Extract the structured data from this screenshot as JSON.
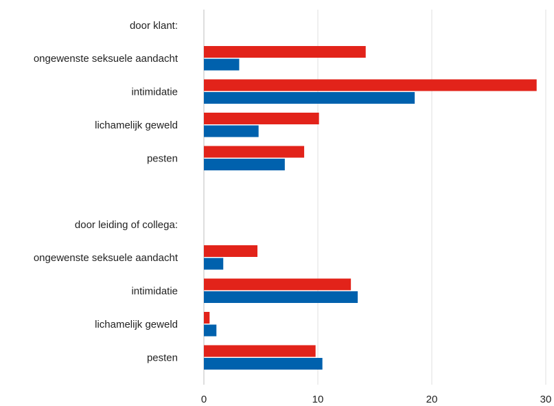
{
  "chart_data": {
    "type": "bar",
    "orientation": "horizontal",
    "xlim": [
      0,
      30
    ],
    "x_ticks": [
      0,
      10,
      20,
      30
    ],
    "grid": "vertical",
    "groups": [
      {
        "label": "door klant:",
        "categories": [
          "ongewenste seksuele aandacht",
          "intimidatie",
          "lichamelijk geweld",
          "pesten"
        ],
        "series": [
          {
            "color": "#e2231a",
            "values": [
              14.2,
              29.2,
              10.1,
              8.8
            ]
          },
          {
            "color": "#0061ad",
            "values": [
              3.1,
              18.5,
              4.8,
              7.1
            ]
          }
        ]
      },
      {
        "label": "door leiding of collega:",
        "categories": [
          "ongewenste seksuele aandacht",
          "intimidatie",
          "lichamelijk geweld",
          "pesten"
        ],
        "series": [
          {
            "color": "#e2231a",
            "values": [
              4.7,
              12.9,
              0.5,
              9.8
            ]
          },
          {
            "color": "#0061ad",
            "values": [
              1.7,
              13.5,
              1.1,
              10.4
            ]
          }
        ]
      }
    ]
  }
}
